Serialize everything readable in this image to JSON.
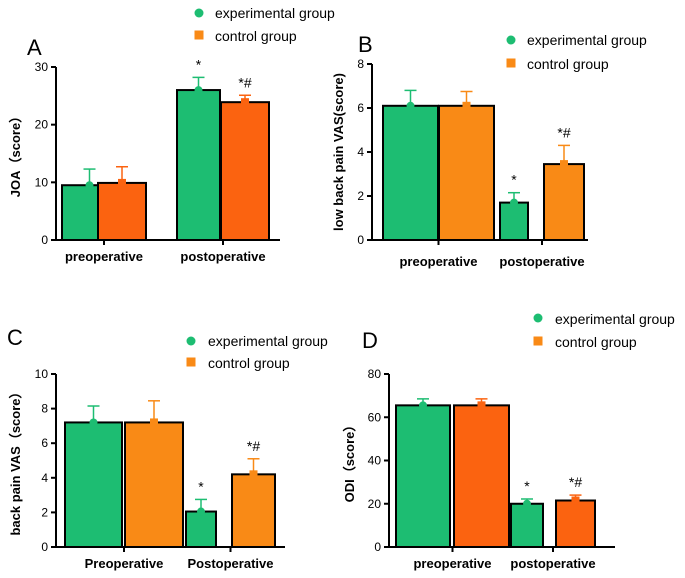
{
  "colors": {
    "experimental": "#1dbd72",
    "control": "#f98a16",
    "control_dark": "#fb6310",
    "bar_edge": "#000000",
    "axis": "#000000"
  },
  "chart_data": [
    {
      "type": "bar",
      "panel": "A",
      "ylabel": "JOA（score）",
      "ylim": [
        0,
        30
      ],
      "yticks": [
        0,
        10,
        20,
        30
      ],
      "categories": [
        "preoperative",
        "postoperative"
      ],
      "legend": [
        "experimental group",
        "control group"
      ],
      "legend_position": "top-center",
      "series": [
        {
          "name": "experimental group",
          "values": [
            9.5,
            26.0
          ],
          "errors": [
            2.8,
            2.2
          ],
          "annotations": [
            "",
            "*"
          ]
        },
        {
          "name": "control group",
          "values": [
            9.9,
            23.9
          ],
          "errors": [
            2.8,
            1.2
          ],
          "annotations": [
            "",
            "*#"
          ]
        }
      ]
    },
    {
      "type": "bar",
      "panel": "B",
      "ylabel": "low back pain VAS(score)",
      "ylim": [
        0,
        8
      ],
      "yticks": [
        0,
        2,
        4,
        6,
        8
      ],
      "categories": [
        "preoperative",
        "postoperative"
      ],
      "legend": [
        "experimental group",
        "control group"
      ],
      "legend_position": "top-right",
      "series": [
        {
          "name": "experimental group",
          "values": [
            6.1,
            1.7
          ],
          "errors": [
            0.7,
            0.45
          ],
          "annotations": [
            "",
            "*"
          ]
        },
        {
          "name": "control group",
          "values": [
            6.1,
            3.45
          ],
          "errors": [
            0.65,
            0.85
          ],
          "annotations": [
            "",
            "*#"
          ]
        }
      ]
    },
    {
      "type": "bar",
      "panel": "C",
      "ylabel": "back pain VAS（score）",
      "ylim": [
        0,
        10
      ],
      "yticks": [
        0,
        2,
        4,
        6,
        8,
        10
      ],
      "categories": [
        "Preoperative",
        "Postoperative"
      ],
      "legend": [
        "experimental group",
        "control group"
      ],
      "legend_position": "top-right",
      "series": [
        {
          "name": "experimental group",
          "values": [
            7.2,
            2.05
          ],
          "errors": [
            0.95,
            0.7
          ],
          "annotations": [
            "",
            "*"
          ]
        },
        {
          "name": "control group",
          "values": [
            7.2,
            4.2
          ],
          "errors": [
            1.25,
            0.9
          ],
          "annotations": [
            "",
            "*#"
          ]
        }
      ]
    },
    {
      "type": "bar",
      "panel": "D",
      "ylabel": "ODI（score）",
      "ylim": [
        0,
        80
      ],
      "yticks": [
        0,
        20,
        40,
        60,
        80
      ],
      "categories": [
        "preoperative",
        "postoperative"
      ],
      "legend": [
        "experimental group",
        "control group"
      ],
      "legend_position": "top-right",
      "series": [
        {
          "name": "experimental group",
          "values": [
            65.5,
            20.0
          ],
          "errors": [
            3.0,
            2.2
          ],
          "annotations": [
            "",
            "*"
          ]
        },
        {
          "name": "control group",
          "values": [
            65.5,
            21.5
          ],
          "errors": [
            3.0,
            2.5
          ],
          "annotations": [
            "",
            "*#"
          ]
        }
      ]
    }
  ]
}
